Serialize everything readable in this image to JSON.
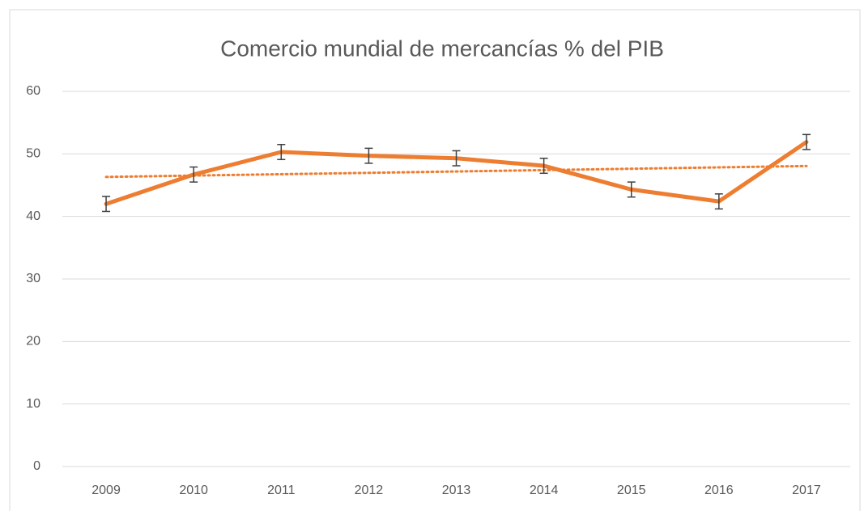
{
  "chart_data": {
    "type": "line",
    "title": "Comercio mundial de mercancías % del PIB",
    "categories": [
      "2009",
      "2010",
      "2011",
      "2012",
      "2013",
      "2014",
      "2015",
      "2016",
      "2017"
    ],
    "series": [
      {
        "color": "#ed7d31",
        "values": [
          42.0,
          46.7,
          50.3,
          49.7,
          49.3,
          48.1,
          44.3,
          42.4,
          51.9
        ],
        "errors": [
          1.2,
          1.2,
          1.2,
          1.2,
          1.2,
          1.2,
          1.2,
          1.2,
          1.2
        ],
        "trendline": "linear"
      }
    ],
    "ylim": [
      0,
      60
    ],
    "yticks": [
      0,
      10,
      20,
      30,
      40,
      50,
      60
    ],
    "grid": true
  }
}
